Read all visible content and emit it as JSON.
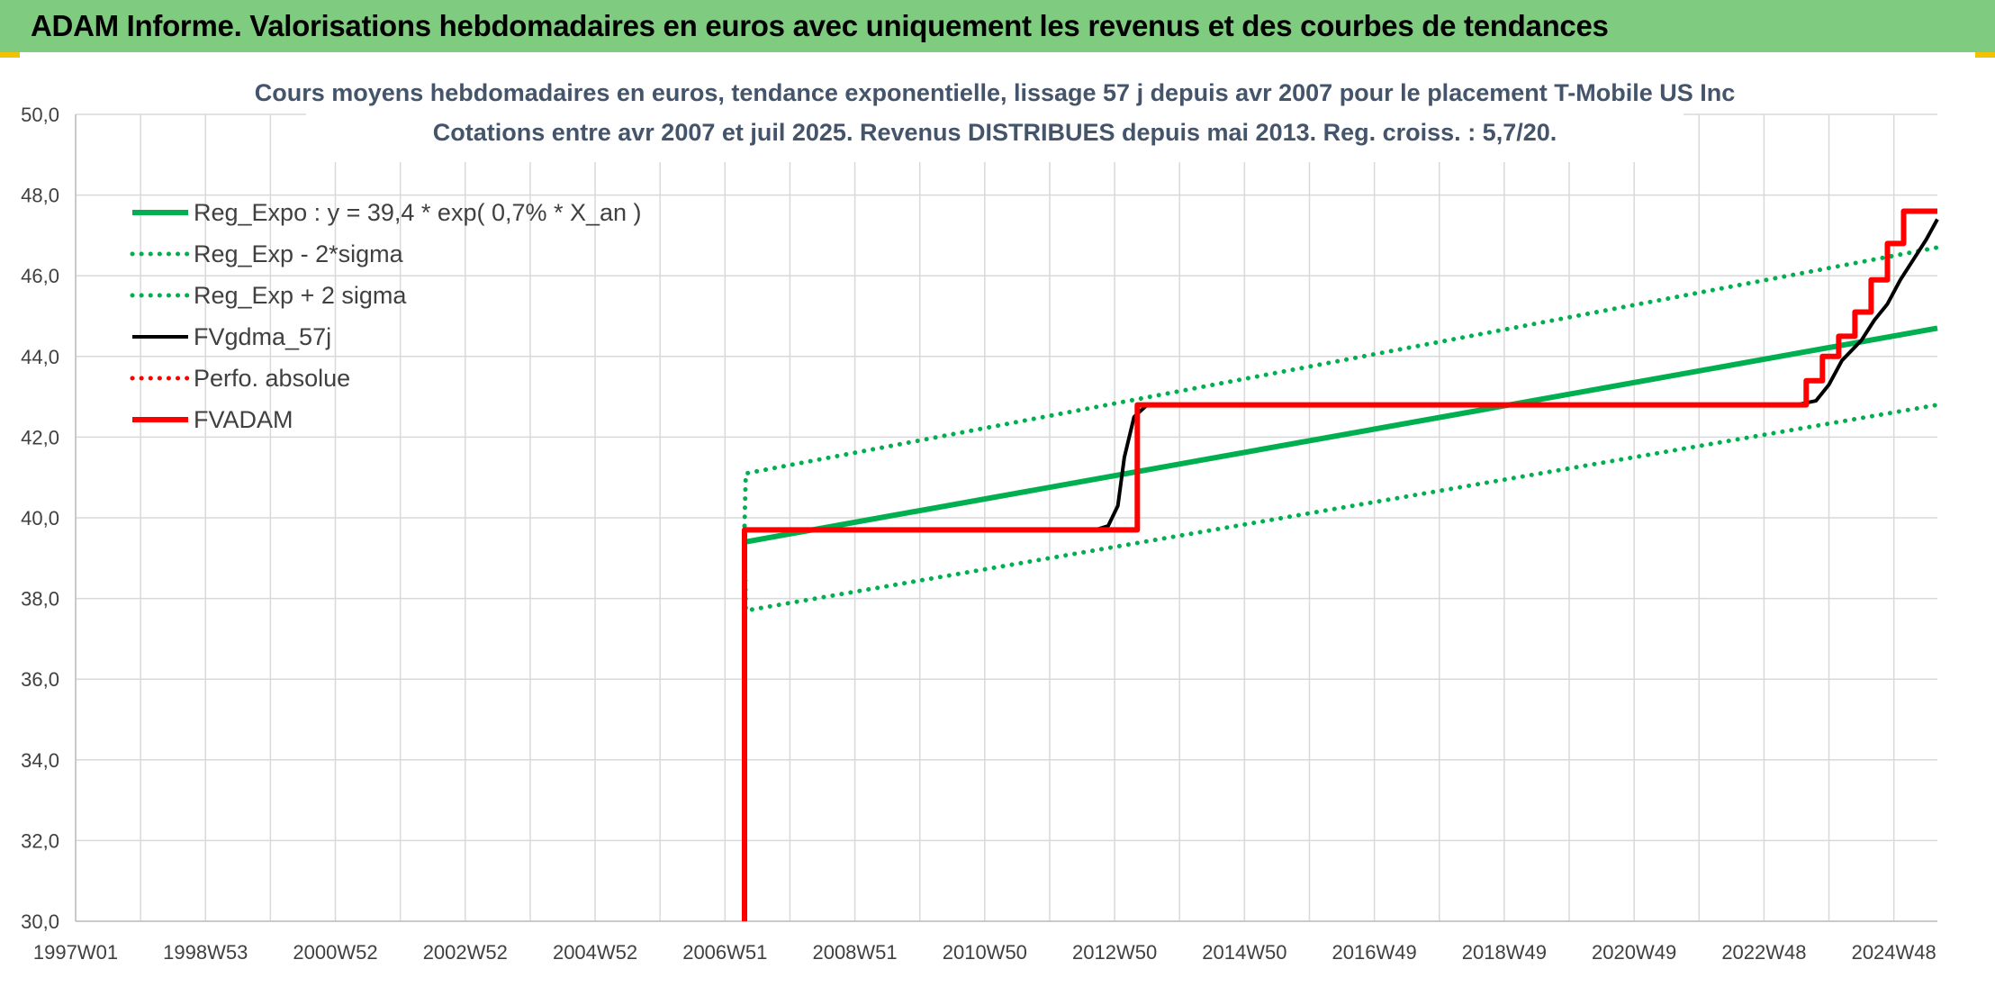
{
  "banner": {
    "title": "ADAM Informe. Valorisations hebdomadaires en euros avec uniquement les revenus et des courbes de tendances"
  },
  "colors": {
    "banner": "#7fcb7f",
    "reg": "#00b050",
    "fv": "#000000",
    "adam": "#ff0000",
    "grid": "#d9d9d9"
  },
  "chart_data": {
    "type": "line",
    "title": "Cours moyens hebdomadaires en euros, tendance exponentielle, lissage 57 j depuis avr 2007 pour le placement T-Mobile US Inc",
    "subtitle": "Cotations entre avr 2007 et juil 2025. Revenus DISTRIBUES depuis mai 2013. Reg. croiss. : 5,7/20.",
    "ylim": [
      30,
      50
    ],
    "yticks": [
      "30,0",
      "32,0",
      "34,0",
      "36,0",
      "38,0",
      "40,0",
      "42,0",
      "44,0",
      "46,0",
      "48,0",
      "50,0"
    ],
    "xlim": [
      1997.0,
      2025.67
    ],
    "xticks": [
      {
        "label": "1997W01",
        "x": 1997.0
      },
      {
        "label": "1998W53",
        "x": 1999.0
      },
      {
        "label": "2000W52",
        "x": 2001.0
      },
      {
        "label": "2002W52",
        "x": 2003.0
      },
      {
        "label": "2004W52",
        "x": 2005.0
      },
      {
        "label": "2006W51",
        "x": 2007.0
      },
      {
        "label": "2008W51",
        "x": 2009.0
      },
      {
        "label": "2010W50",
        "x": 2011.0
      },
      {
        "label": "2012W50",
        "x": 2013.0
      },
      {
        "label": "2014W50",
        "x": 2015.0
      },
      {
        "label": "2016W49",
        "x": 2017.0
      },
      {
        "label": "2018W49",
        "x": 2019.0
      },
      {
        "label": "2020W49",
        "x": 2021.0
      },
      {
        "label": "2022W48",
        "x": 2023.0
      },
      {
        "label": "2024W48",
        "x": 2025.0
      }
    ],
    "grid": true,
    "legend_position": "top-left",
    "series": [
      {
        "name": "Reg_Expo : y = 39,4 * exp( 0,7% *  X_an )",
        "style": "solid-thick",
        "color": "#00b050",
        "x": [
          2007.3,
          2025.67
        ],
        "y": [
          39.4,
          44.7
        ]
      },
      {
        "name": "Reg_Exp - 2*sigma",
        "style": "dotted",
        "color": "#00b050",
        "x": [
          2007.3,
          2007.32,
          2025.67
        ],
        "y": [
          39.8,
          37.7,
          42.8
        ]
      },
      {
        "name": "Reg_Exp + 2 sigma",
        "style": "dotted",
        "color": "#00b050",
        "x": [
          2007.3,
          2007.32,
          2025.67
        ],
        "y": [
          39.8,
          41.1,
          46.7
        ]
      },
      {
        "name": "FVgdma_57j",
        "style": "solid",
        "color": "#000000",
        "x": [
          2007.3,
          2007.3,
          2012.7,
          2012.9,
          2013.05,
          2013.15,
          2013.3,
          2013.5,
          2023.5,
          2023.8,
          2024.0,
          2024.2,
          2024.5,
          2024.7,
          2024.9,
          2025.1,
          2025.3,
          2025.5,
          2025.67
        ],
        "y": [
          30.0,
          39.7,
          39.7,
          39.8,
          40.3,
          41.5,
          42.5,
          42.8,
          42.8,
          42.9,
          43.3,
          43.9,
          44.4,
          44.9,
          45.3,
          45.9,
          46.4,
          46.9,
          47.4
        ]
      },
      {
        "name": "Perfo. absolue",
        "style": "dotted",
        "color": "#ff0000",
        "x": [],
        "y": []
      },
      {
        "name": "FVADAM",
        "style": "solid-thick",
        "color": "#ff0000",
        "x": [
          2007.3,
          2007.3,
          2013.35,
          2013.35,
          2023.65,
          2023.65,
          2023.9,
          2023.9,
          2024.15,
          2024.15,
          2024.4,
          2024.4,
          2024.65,
          2024.65,
          2024.9,
          2024.9,
          2025.15,
          2025.15,
          2025.4,
          2025.4,
          2025.67
        ],
        "y": [
          30.0,
          39.7,
          39.7,
          42.8,
          42.8,
          43.4,
          43.4,
          44.0,
          44.0,
          44.5,
          44.5,
          45.1,
          45.1,
          45.9,
          45.9,
          46.8,
          46.8,
          47.6,
          47.6,
          47.6,
          47.6
        ]
      }
    ]
  }
}
